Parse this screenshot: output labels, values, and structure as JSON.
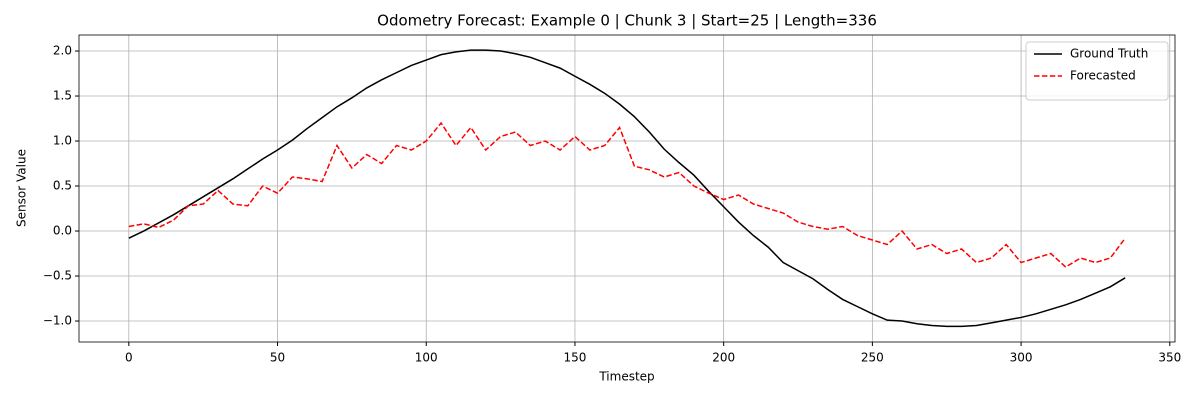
{
  "chart_data": {
    "type": "line",
    "title": "Odometry Forecast: Example 0 | Chunk 3 | Start=25 | Length=336",
    "xlabel": "Timestep",
    "ylabel": "Sensor Value",
    "x": [
      0,
      5,
      10,
      15,
      20,
      25,
      30,
      35,
      40,
      45,
      50,
      55,
      60,
      65,
      70,
      75,
      80,
      85,
      90,
      95,
      100,
      105,
      110,
      115,
      120,
      125,
      130,
      135,
      140,
      145,
      150,
      155,
      160,
      165,
      170,
      175,
      180,
      185,
      190,
      195,
      200,
      205,
      210,
      215,
      220,
      225,
      230,
      235,
      240,
      245,
      250,
      255,
      260,
      265,
      270,
      275,
      280,
      285,
      290,
      295,
      300,
      305,
      310,
      315,
      320,
      325,
      330,
      335
    ],
    "series": [
      {
        "name": "Ground Truth",
        "color": "#000000",
        "dash": "solid",
        "values": [
          -0.08,
          0.0,
          0.09,
          0.18,
          0.28,
          0.38,
          0.48,
          0.58,
          0.69,
          0.8,
          0.9,
          1.01,
          1.14,
          1.26,
          1.38,
          1.48,
          1.59,
          1.68,
          1.76,
          1.84,
          1.9,
          1.96,
          1.99,
          2.01,
          2.01,
          2.0,
          1.97,
          1.93,
          1.87,
          1.81,
          1.72,
          1.63,
          1.53,
          1.41,
          1.27,
          1.1,
          0.91,
          0.76,
          0.62,
          0.44,
          0.27,
          0.1,
          -0.05,
          -0.18,
          -0.35,
          -0.44,
          -0.53,
          -0.65,
          -0.76,
          -0.84,
          -0.92,
          -0.99,
          -1.0,
          -1.03,
          -1.05,
          -1.06,
          -1.06,
          -1.05,
          -1.02,
          -0.99,
          -0.96,
          -0.92,
          -0.87,
          -0.82,
          -0.76,
          -0.69,
          -0.62,
          -0.52
        ]
      },
      {
        "name": "Forecasted",
        "color": "#ff0000",
        "dash": "dashed",
        "values": [
          0.05,
          0.08,
          0.04,
          0.12,
          0.28,
          0.3,
          0.45,
          0.3,
          0.28,
          0.5,
          0.42,
          0.6,
          0.58,
          0.55,
          0.95,
          0.7,
          0.85,
          0.75,
          0.95,
          0.9,
          1.0,
          1.2,
          0.95,
          1.15,
          0.9,
          1.05,
          1.1,
          0.95,
          1.0,
          0.9,
          1.05,
          0.9,
          0.95,
          1.15,
          0.72,
          0.68,
          0.6,
          0.65,
          0.5,
          0.42,
          0.35,
          0.4,
          0.3,
          0.25,
          0.2,
          0.1,
          0.05,
          0.02,
          0.05,
          -0.05,
          -0.1,
          -0.15,
          0.0,
          -0.2,
          -0.15,
          -0.25,
          -0.2,
          -0.35,
          -0.3,
          -0.15,
          -0.35,
          -0.3,
          -0.25,
          -0.4,
          -0.3,
          -0.35,
          -0.3,
          -0.08
        ]
      }
    ],
    "xlim": [
      -16.75,
      351.75
    ],
    "ylim": [
      -1.233,
      2.178
    ],
    "xticks": [
      0,
      50,
      100,
      150,
      200,
      250,
      300,
      350
    ],
    "yticks": [
      {
        "value": -1.0,
        "label": "−1.0"
      },
      {
        "value": -0.5,
        "label": "−0.5"
      },
      {
        "value": 0.0,
        "label": "0.0"
      },
      {
        "value": 0.5,
        "label": "0.5"
      },
      {
        "value": 1.0,
        "label": "1.0"
      },
      {
        "value": 1.5,
        "label": "1.5"
      },
      {
        "value": 2.0,
        "label": "2.0"
      }
    ],
    "grid": true,
    "legend": "upper right"
  }
}
